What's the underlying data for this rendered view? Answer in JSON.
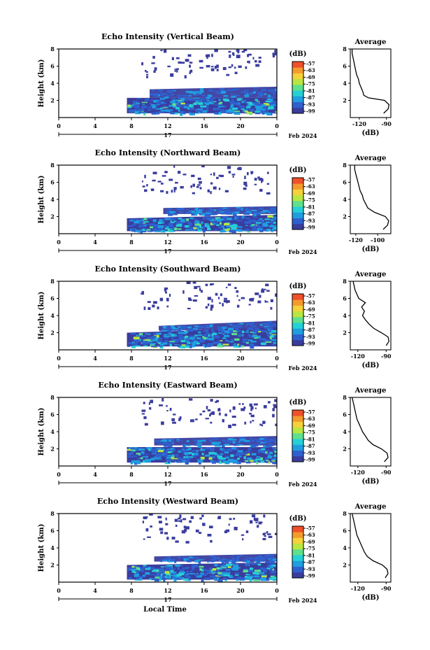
{
  "chart_data": [
    {
      "type": "heatmap",
      "title": "Echo Intensity (Vertical Beam)",
      "ylabel": "Height (km)",
      "x_ticks": [
        "0",
        "4",
        "8",
        "12",
        "16",
        "20",
        "0"
      ],
      "y_ticks": [
        "2",
        "4",
        "6",
        "8"
      ],
      "x_range": [
        0,
        24
      ],
      "y_range": [
        0,
        8
      ],
      "day_label": "17",
      "date_label": "Feb 2024",
      "colorbar": {
        "unit": "(dB)",
        "ticks": [
          "-57",
          "-63",
          "-69",
          "-75",
          "-81",
          "-87",
          "-93",
          "-99"
        ]
      },
      "cloud_layers": [
        {
          "start_hour": 7.5,
          "bottom_km": 0.5,
          "top_km": 2.3,
          "top_end_km": 2.3
        },
        {
          "start_hour": 10,
          "bottom_km": 2.3,
          "top_km": 3.3,
          "top_end_km": 3.6
        }
      ],
      "average": {
        "title": "Average",
        "xlabel": "(dB)",
        "x_ticks": [
          "-120",
          "-90"
        ],
        "x_range": [
          -130,
          -85
        ],
        "y_ticks": [
          "2",
          "4",
          "6",
          "8"
        ],
        "height_km": [
          0.5,
          1.0,
          1.5,
          2.0,
          2.3,
          2.6,
          3.0,
          3.5,
          4.0,
          4.5,
          5.0,
          5.5,
          6.0,
          6.5,
          7.0,
          7.5,
          8.0
        ],
        "value_db": [
          -93,
          -88,
          -87,
          -92,
          -110,
          -115,
          -116,
          -118,
          -120,
          -121,
          -123,
          -124,
          -125,
          -126,
          -127,
          -128,
          -128
        ]
      }
    },
    {
      "type": "heatmap",
      "title": "Echo Intensity (Northward Beam)",
      "ylabel": "Height (km)",
      "x_ticks": [
        "0",
        "4",
        "8",
        "12",
        "16",
        "20",
        "0"
      ],
      "y_ticks": [
        "2",
        "4",
        "6",
        "8"
      ],
      "x_range": [
        0,
        24
      ],
      "y_range": [
        0,
        8
      ],
      "day_label": "17",
      "date_label": "Feb 2024",
      "colorbar": {
        "unit": "(dB)",
        "ticks": [
          "-57",
          "-63",
          "-69",
          "-75",
          "-81",
          "-87",
          "-93",
          "-99"
        ]
      },
      "cloud_layers": [
        {
          "start_hour": 7.5,
          "bottom_km": 0.3,
          "top_km": 1.8,
          "top_end_km": 2.2
        },
        {
          "start_hour": 11.5,
          "bottom_km": 2.3,
          "top_km": 3.0,
          "top_end_km": 3.2
        }
      ],
      "average": {
        "title": "Average",
        "xlabel": "(dB)",
        "x_ticks": [
          "-120",
          "-100"
        ],
        "x_range": [
          -125,
          -88
        ],
        "y_ticks": [
          "2",
          "4",
          "6",
          "8"
        ],
        "height_km": [
          0.5,
          1.0,
          1.5,
          2.0,
          2.5,
          3.0,
          3.5,
          4.0,
          4.5,
          5.0,
          5.5,
          6.0,
          6.5,
          7.0,
          7.5,
          8.0
        ],
        "value_db": [
          -95,
          -91,
          -90,
          -93,
          -103,
          -109,
          -111,
          -113,
          -114,
          -116,
          -117,
          -118,
          -119,
          -120,
          -121,
          -121
        ]
      }
    },
    {
      "type": "heatmap",
      "title": "Echo Intensity (Southward Beam)",
      "ylabel": "Height (km)",
      "x_ticks": [
        "0",
        "4",
        "8",
        "12",
        "16",
        "20",
        "0"
      ],
      "y_ticks": [
        "2",
        "4",
        "6",
        "8"
      ],
      "x_range": [
        0,
        24
      ],
      "y_range": [
        0,
        8
      ],
      "day_label": "17",
      "date_label": "Feb 2024",
      "colorbar": {
        "unit": "(dB)",
        "ticks": [
          "-57",
          "-63",
          "-69",
          "-75",
          "-81",
          "-87",
          "-93",
          "-99"
        ]
      },
      "cloud_layers": [
        {
          "start_hour": 7.5,
          "bottom_km": 0.4,
          "top_km": 2.0,
          "top_end_km": 2.6
        },
        {
          "start_hour": 11,
          "bottom_km": 2.3,
          "top_km": 2.8,
          "top_end_km": 3.4
        }
      ],
      "average": {
        "title": "Average",
        "xlabel": "(dB)",
        "x_ticks": [
          "-120",
          "-90"
        ],
        "x_range": [
          -128,
          -85
        ],
        "y_ticks": [
          "2",
          "4",
          "6",
          "8"
        ],
        "height_km": [
          0.5,
          1.0,
          1.5,
          2.0,
          2.5,
          3.0,
          3.5,
          4.0,
          4.5,
          5.0,
          5.5,
          6.0,
          6.5,
          7.0,
          7.5,
          8.0
        ],
        "value_db": [
          -90,
          -87,
          -88,
          -95,
          -103,
          -108,
          -112,
          -115,
          -113,
          -116,
          -112,
          -119,
          -121,
          -123,
          -124,
          -125
        ]
      }
    },
    {
      "type": "heatmap",
      "title": "Echo Intensity (Eastward Beam)",
      "ylabel": "Height (km)",
      "x_ticks": [
        "0",
        "4",
        "8",
        "12",
        "16",
        "20",
        "0"
      ],
      "y_ticks": [
        "2",
        "4",
        "6",
        "8"
      ],
      "x_range": [
        0,
        24
      ],
      "y_range": [
        0,
        8
      ],
      "day_label": "17",
      "date_label": "Feb 2024",
      "colorbar": {
        "unit": "(dB)",
        "ticks": [
          "-57",
          "-63",
          "-69",
          "-75",
          "-81",
          "-87",
          "-93",
          "-99"
        ]
      },
      "cloud_layers": [
        {
          "start_hour": 7.5,
          "bottom_km": 0.4,
          "top_km": 2.2,
          "top_end_km": 2.2
        },
        {
          "start_hour": 10.5,
          "bottom_km": 2.4,
          "top_km": 3.2,
          "top_end_km": 3.5
        }
      ],
      "average": {
        "title": "Average",
        "xlabel": "(dB)",
        "x_ticks": [
          "-120",
          "-90"
        ],
        "x_range": [
          -128,
          -85
        ],
        "y_ticks": [
          "2",
          "4",
          "6",
          "8"
        ],
        "height_km": [
          0.5,
          1.0,
          1.5,
          2.0,
          2.5,
          3.0,
          3.5,
          4.0,
          4.5,
          5.0,
          5.5,
          6.0,
          6.5,
          7.0,
          7.5,
          8.0
        ],
        "value_db": [
          -92,
          -88,
          -89,
          -95,
          -104,
          -109,
          -112,
          -115,
          -117,
          -119,
          -121,
          -122,
          -123,
          -124,
          -125,
          -126
        ]
      }
    },
    {
      "type": "heatmap",
      "title": "Echo Intensity (Westward Beam)",
      "ylabel": "Height (km)",
      "x_ticks": [
        "0",
        "4",
        "8",
        "12",
        "16",
        "20",
        "0"
      ],
      "y_ticks": [
        "2",
        "4",
        "6",
        "8"
      ],
      "x_range": [
        0,
        24
      ],
      "y_range": [
        0,
        8
      ],
      "day_label": "17",
      "date_label": "Feb 2024",
      "xlabel": "Local Time",
      "colorbar": {
        "unit": "(dB)",
        "ticks": [
          "-57",
          "-63",
          "-69",
          "-75",
          "-81",
          "-87",
          "-93",
          "-99"
        ]
      },
      "cloud_layers": [
        {
          "start_hour": 7.5,
          "bottom_km": 0.3,
          "top_km": 2.0,
          "top_end_km": 2.3
        },
        {
          "start_hour": 10.5,
          "bottom_km": 2.4,
          "top_km": 3.0,
          "top_end_km": 3.3
        }
      ],
      "average": {
        "title": "Average",
        "xlabel": "(dB)",
        "x_ticks": [
          "-120",
          "-90"
        ],
        "x_range": [
          -128,
          -85
        ],
        "y_ticks": [
          "2",
          "4",
          "6",
          "8"
        ],
        "height_km": [
          0.5,
          1.0,
          1.5,
          2.0,
          2.5,
          3.0,
          3.5,
          4.0,
          4.5,
          5.0,
          5.5,
          6.0,
          6.5,
          7.0,
          7.5,
          8.0
        ],
        "value_db": [
          -91,
          -88,
          -89,
          -94,
          -104,
          -110,
          -113,
          -115,
          -117,
          -119,
          -121,
          -122,
          -123,
          -124,
          -125,
          -126
        ]
      }
    }
  ],
  "colors": {
    "colormap": [
      "#3a3d9e",
      "#2f60cf",
      "#1f9ee0",
      "#25d1d6",
      "#5fe08c",
      "#b9e640",
      "#f5d23a",
      "#f59a2c",
      "#f0502a"
    ],
    "axis": "#000000"
  }
}
